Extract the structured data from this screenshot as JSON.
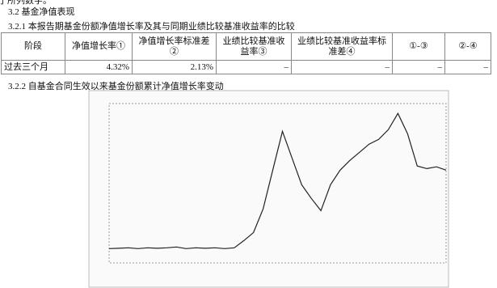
{
  "cutoff_line": "了所列数字。",
  "section": "3.2 基金净值表现",
  "subsection_1": "3.2.1 本报告期基金份额净值增长率及其与同期业绩比较基准收益率的比较",
  "table": {
    "header": [
      "阶段",
      "净值增长率①",
      "净值增长率标准差②",
      "业绩比较基准收益率③",
      "业绩比较基准收益率标准差④",
      "①-③",
      "②-④"
    ],
    "rows": [
      [
        "过去三个月",
        "4.32%",
        "2.13%",
        "–",
        "–",
        "–",
        "–"
      ]
    ]
  },
  "subsection_2": "3.2.2 自基金合同生效以来基金份额累计净值增长率变动",
  "chart_data": {
    "type": "line",
    "color": "#222222",
    "ylim": [
      -100,
      900
    ],
    "values": [
      -10,
      -8,
      -5,
      -10,
      -5,
      -8,
      -5,
      0,
      -10,
      -5,
      -8,
      -5,
      -10,
      -5,
      40,
      91,
      239,
      482,
      726,
      558,
      391,
      305,
      228,
      391,
      482,
      543,
      594,
      645,
      675,
      736,
      838,
      711,
      508,
      492,
      503,
      482
    ]
  }
}
